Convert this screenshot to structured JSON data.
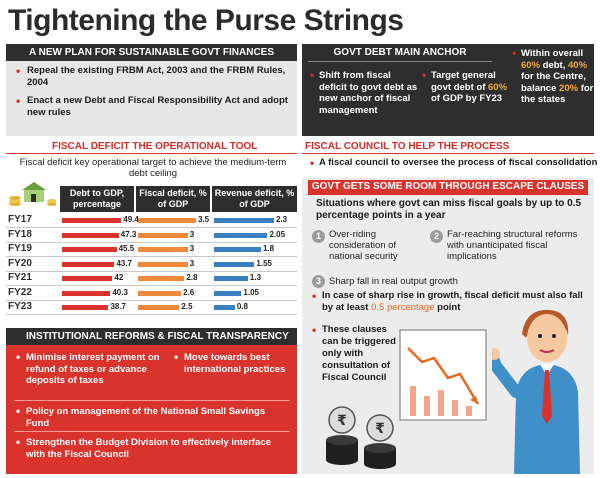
{
  "title": "Tightening the Purse Strings",
  "plan": {
    "heading": "A NEW PLAN FOR SUSTAINABLE GOVT FINANCES",
    "items": [
      "Repeal the existing FRBM Act, 2003 and the FRBM Rules, 2004",
      "Enact a new Debt and Fiscal Responsibility Act and adopt new rules"
    ]
  },
  "anchor": {
    "heading": "GOVT DEBT MAIN ANCHOR",
    "col1": "Shift from fiscal deficit to govt debt as new anchor of fiscal management",
    "col2_pre": "Target general govt debt of",
    "col2_hl": "60%",
    "col2_post": "of GDP by FY23",
    "col3_pre": "Within overall",
    "col3_hl1": "60%",
    "col3_mid1": "debt,",
    "col3_hl2": "40%",
    "col3_mid2": "for the Centre, balance",
    "col3_hl3": "20%",
    "col3_post": "for the states"
  },
  "fiscal_tool": {
    "heading": "FISCAL DEFICIT THE OPERATIONAL TOOL",
    "subtext": "Fiscal deficit key operational target to achieve the medium-term debt ceiling"
  },
  "colors": {
    "debt": "#d8342d",
    "fiscal": "#ef8a3a",
    "revenue": "#3a7fc1",
    "dark": "#2e2e2e"
  },
  "chart_data": {
    "type": "table",
    "categories": [
      "FY17",
      "FY18",
      "FY19",
      "FY20",
      "FY21",
      "FY22",
      "FY23"
    ],
    "series": [
      {
        "name": "Debt to GDP, percentage",
        "values": [
          49.4,
          47.3,
          45.5,
          43.7,
          42,
          40.3,
          38.7
        ],
        "labels": [
          "49.4",
          "47.3",
          "45.5",
          "43.7",
          "42",
          "40.3",
          "38.7"
        ]
      },
      {
        "name": "Fiscal deficit, % of GDP",
        "values": [
          3.5,
          3,
          3,
          3,
          2.8,
          2.6,
          2.5
        ],
        "labels": [
          "3.5",
          "3",
          "3",
          "3",
          "2.8",
          "2.6",
          "2.5"
        ]
      },
      {
        "name": "Revenue deficit, % of GDP",
        "values": [
          2.3,
          2.05,
          1.8,
          1.55,
          1.3,
          1.05,
          0.8
        ],
        "labels": [
          "2.3",
          "2.05",
          "1.8",
          "1.55",
          "1.3",
          "1.05",
          "0.8"
        ]
      }
    ]
  },
  "reforms": {
    "heading": "INSTITUTIONAL REFORMS & FISCAL TRANSPARENCY",
    "items": [
      "Minimise interest payment on refund of taxes or advance deposits of taxes",
      "Move towards best international practices",
      "Policy on management of the National Small Savings Fund",
      "Strengthen the Budget Division to effectively interface with the Fiscal Council"
    ]
  },
  "council": {
    "heading": "FISCAL COUNCIL TO HELP THE PROCESS",
    "text": "A fiscal council to oversee the process of fiscal consolidation"
  },
  "escape": {
    "heading": "GOVT GETS SOME ROOM THROUGH ESCAPE CLAUSES",
    "intro": "Situations where govt can miss fiscal goals by up to 0.5 percentage points in a year",
    "n1": "1",
    "c1": "Over-riding consideration of national security",
    "n2": "2",
    "c2": "Far-reaching structural reforms with unanticipated fiscal implications",
    "n3": "3",
    "c3": "Sharp fall in real output growth",
    "b1_pre": "In case of sharp rise in growth, fiscal deficit must also fall by at least",
    "b1_hl": "0.5 percentage",
    "b1_post": "point",
    "b2": "These clauses can be triggered only with consultation of Fiscal Council",
    "coin_symbol": "₹"
  }
}
